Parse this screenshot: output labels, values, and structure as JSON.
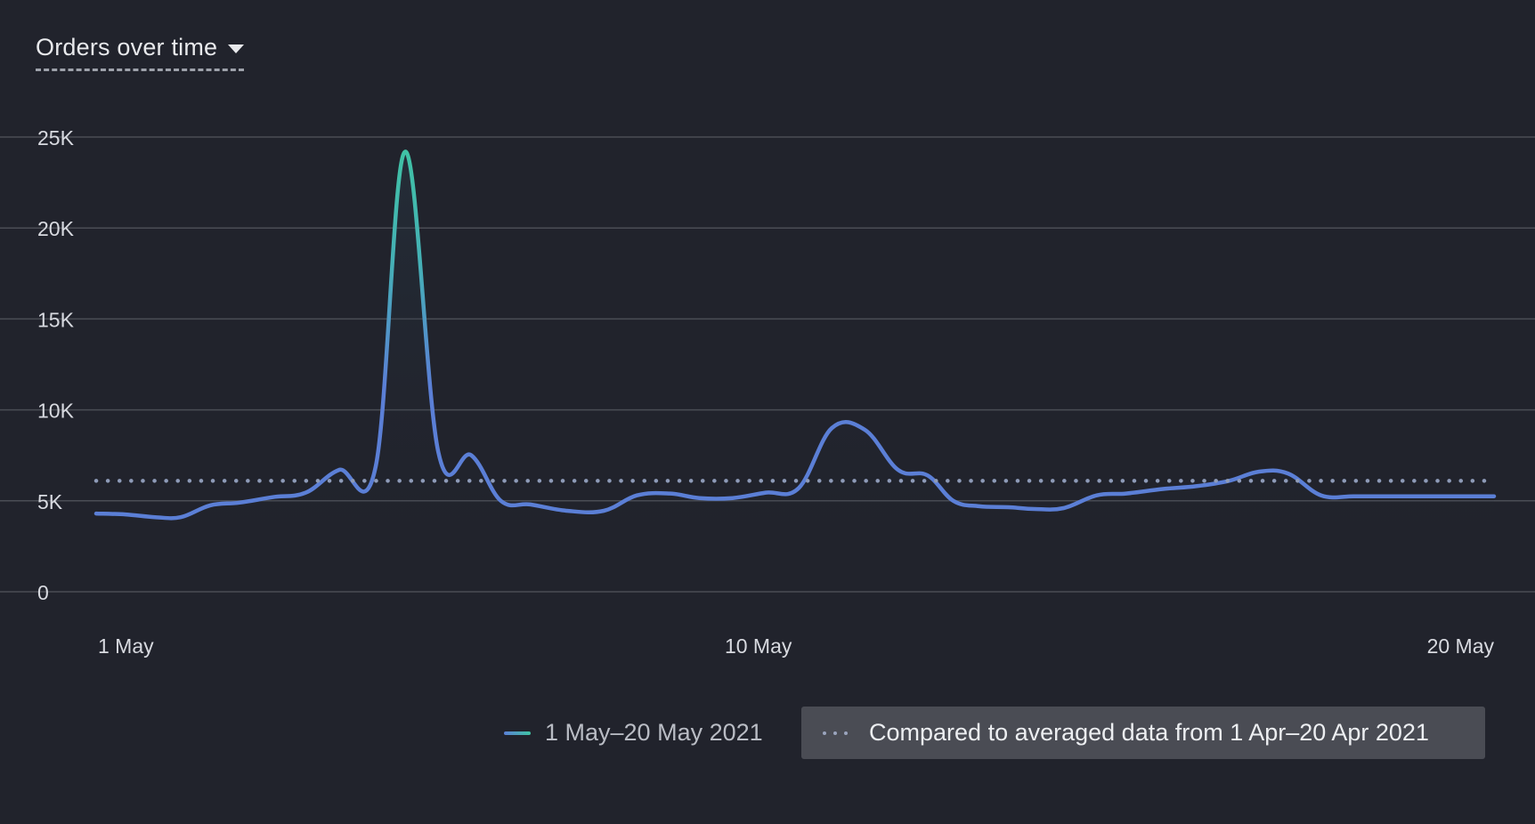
{
  "header": {
    "title": "Orders over time"
  },
  "legend": {
    "primary": "1 May–20 May 2021",
    "comparison": "Compared to averaged data from 1 Apr–20 Apr 2021"
  },
  "colors": {
    "line": "#5b7fd6",
    "peak": "#3fc4a3",
    "comparison": "#8e9bb8",
    "grid": "#4a4d55",
    "axis_text": "#d8dae0"
  },
  "chart_data": {
    "type": "line",
    "title": "Orders over time",
    "xlabel": "",
    "ylabel": "",
    "ylim": [
      0,
      25000
    ],
    "y_ticks": [
      {
        "value": 0,
        "label": "0"
      },
      {
        "value": 5000,
        "label": "5K"
      },
      {
        "value": 10000,
        "label": "10K"
      },
      {
        "value": 15000,
        "label": "15K"
      },
      {
        "value": 20000,
        "label": "20K"
      },
      {
        "value": 25000,
        "label": "25K"
      }
    ],
    "x_ticks": [
      {
        "day": 1,
        "label": "1 May"
      },
      {
        "day": 10,
        "label": "10 May"
      },
      {
        "day": 20,
        "label": "20 May"
      }
    ],
    "grid": true,
    "legend_position": "bottom-right",
    "series": [
      {
        "name": "1 May–20 May 2021",
        "style": "solid",
        "x_days": [
          1.0,
          1.4,
          1.8,
          2.15,
          2.55,
          2.95,
          3.4,
          3.85,
          4.3,
          4.8,
          5.2,
          5.65,
          6.1,
          6.5,
          6.9,
          7.4,
          7.9,
          8.35,
          8.8,
          9.2,
          9.65,
          10.1,
          10.55,
          11.0,
          11.45,
          11.9,
          12.3,
          12.65,
          13.0,
          13.4,
          13.75,
          14.15,
          14.6,
          15.0,
          15.5,
          15.95,
          16.4,
          16.8,
          17.2,
          17.65,
          18.1,
          18.55,
          19.0,
          19.35,
          19.75,
          20.0
        ],
        "values": [
          4300,
          4250,
          4100,
          4100,
          4750,
          4900,
          5200,
          5450,
          6700,
          6900,
          24200,
          7700,
          7500,
          5000,
          4800,
          4450,
          4450,
          5300,
          5400,
          5150,
          5150,
          5450,
          5700,
          9000,
          8900,
          6700,
          6400,
          5000,
          4700,
          4650,
          4550,
          4600,
          5300,
          5400,
          5650,
          5800,
          6100,
          6600,
          6500,
          5300,
          5250,
          5250,
          5250,
          5250,
          5250,
          5250
        ]
      },
      {
        "name": "Compared to averaged data from 1 Apr–20 Apr 2021",
        "style": "dotted",
        "x_days": [
          1,
          20
        ],
        "values": [
          6100,
          6100
        ]
      }
    ]
  }
}
